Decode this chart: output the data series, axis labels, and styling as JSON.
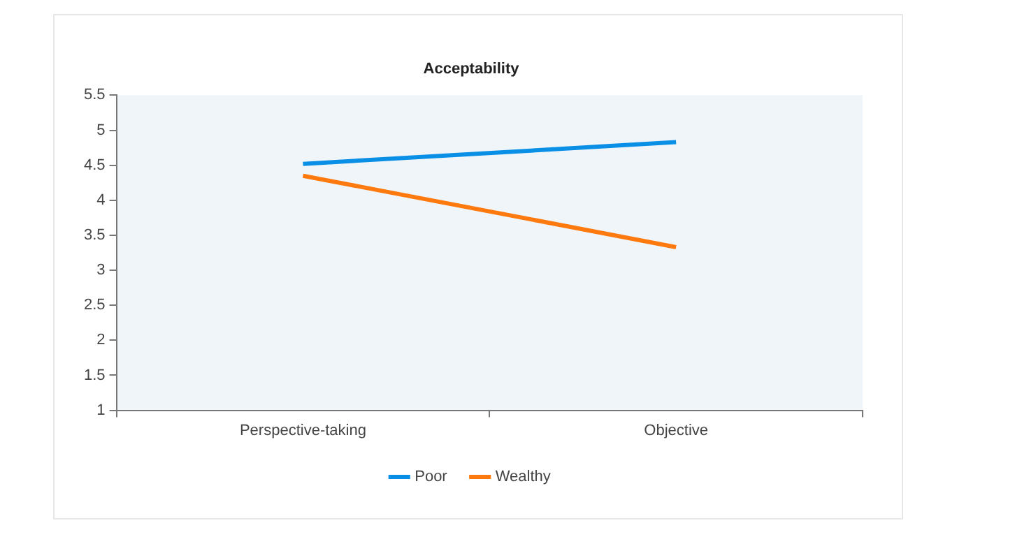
{
  "chart_data": {
    "type": "line",
    "title": "Acceptability",
    "categories": [
      "Perspective-taking",
      "Objective"
    ],
    "series": [
      {
        "name": "Poor",
        "color": "#0a8fe6",
        "values": [
          4.52,
          4.83
        ]
      },
      {
        "name": "Wealthy",
        "color": "#ff7a0e",
        "values": [
          4.35,
          3.33
        ]
      }
    ],
    "ylim": [
      1,
      5.5
    ],
    "yticks": [
      1,
      1.5,
      2,
      2.5,
      3,
      3.5,
      4,
      4.5,
      5,
      5.5
    ],
    "grid": false,
    "legend": "bottom",
    "marker": "none",
    "line_style": "solid"
  }
}
